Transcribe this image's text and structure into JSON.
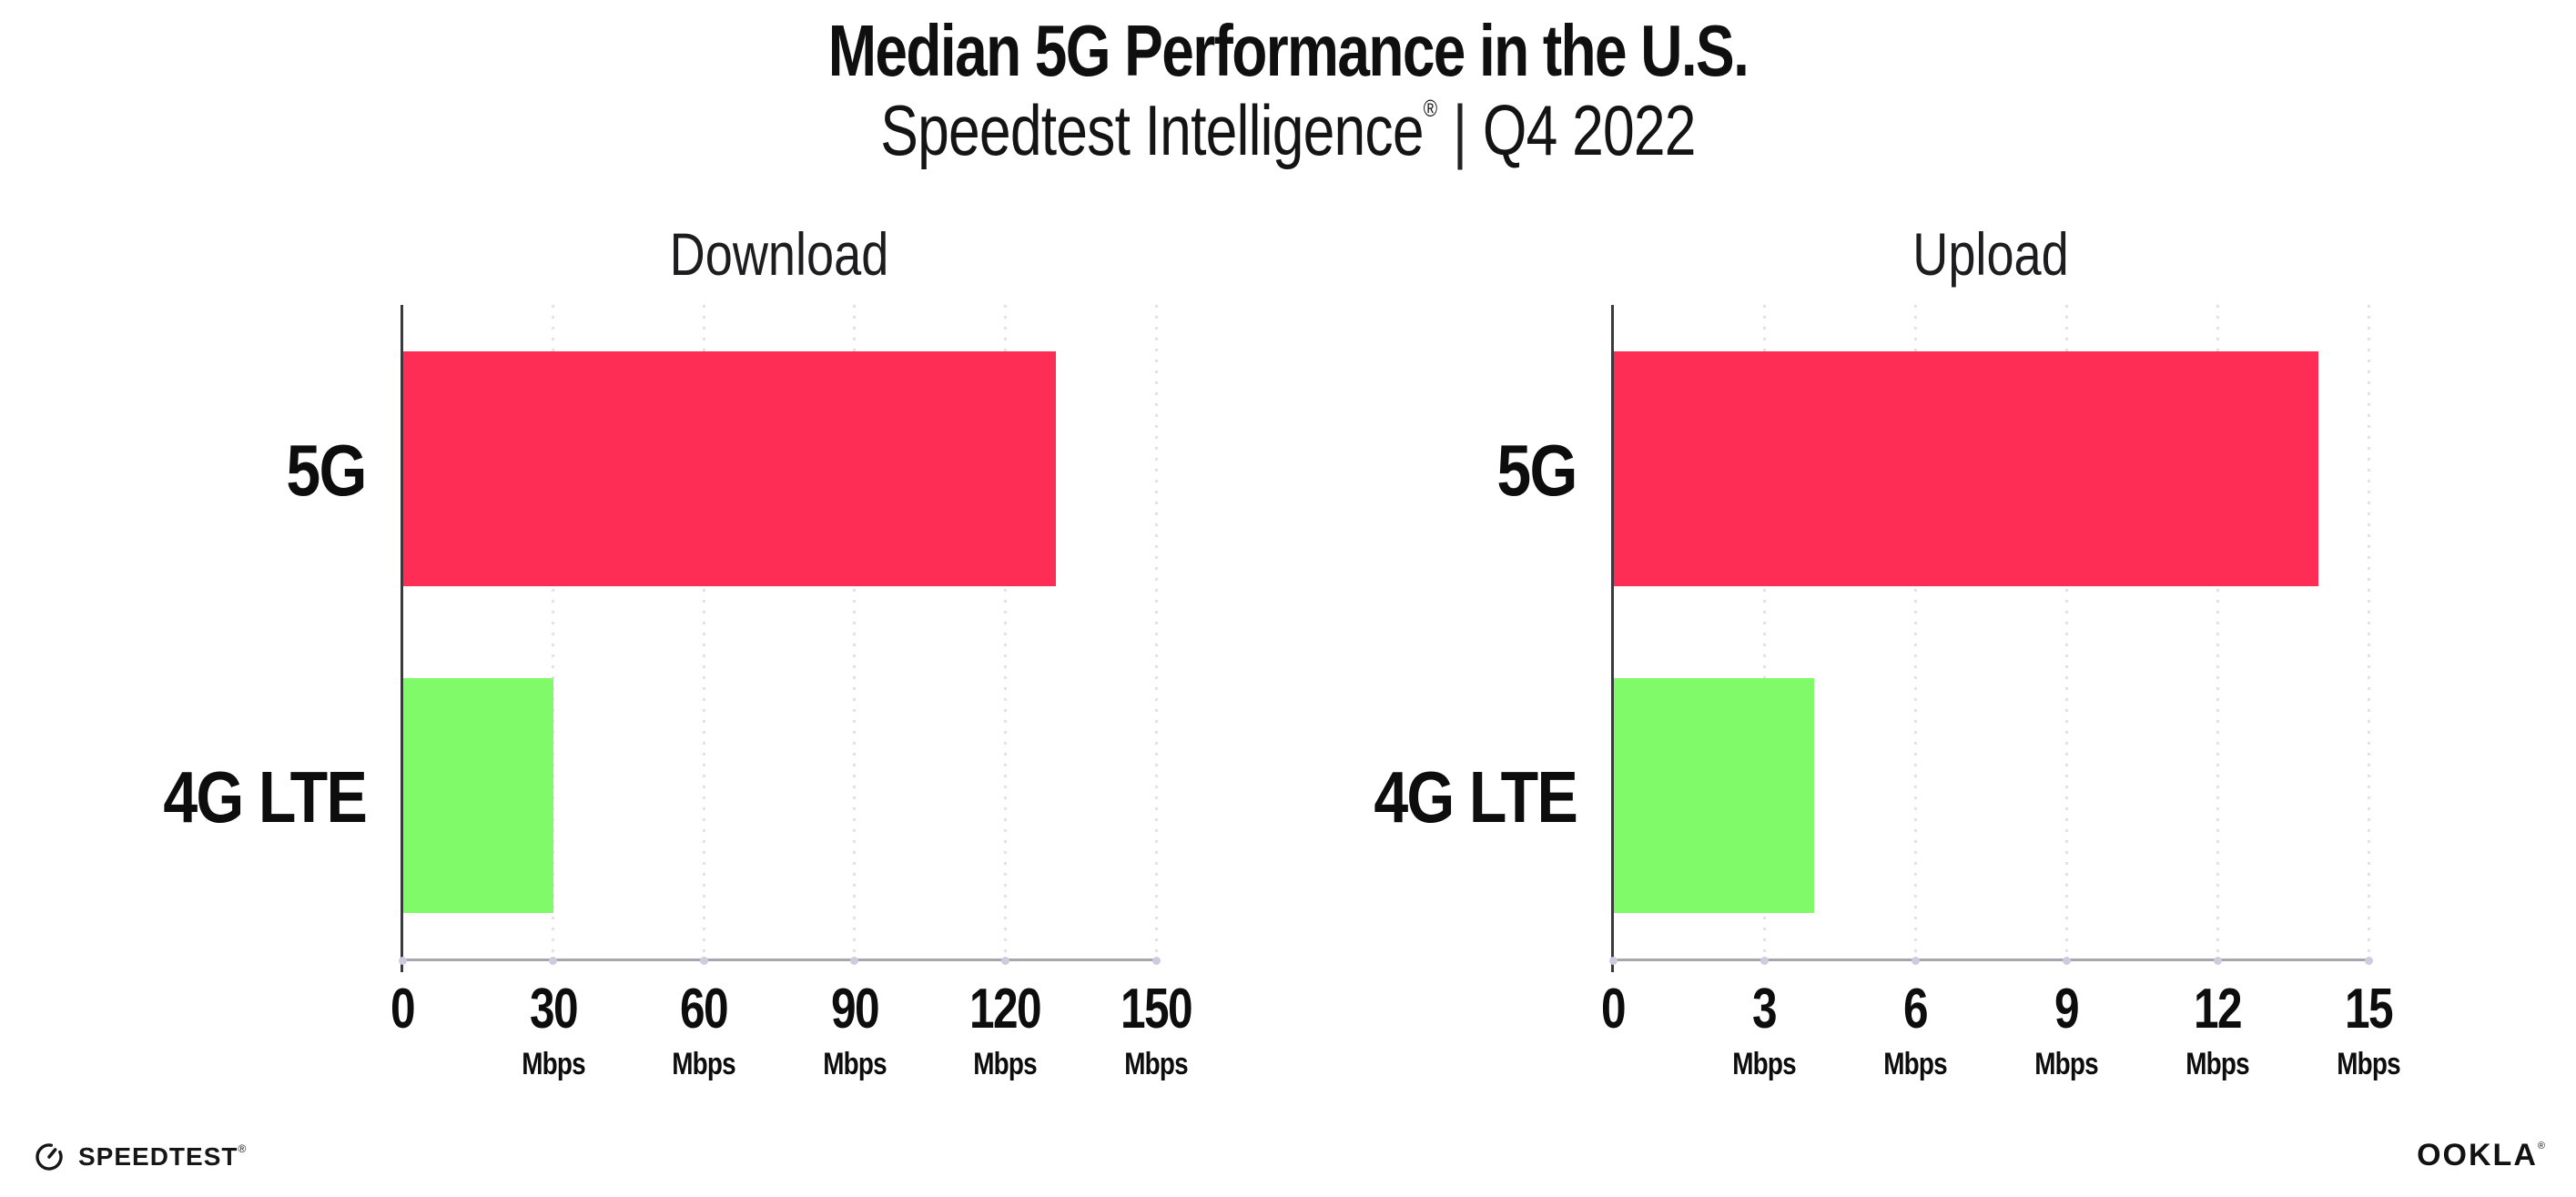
{
  "header": {
    "title": "Median 5G Performance in the U.S.",
    "subtitle_brand": "Speedtest Intelligence",
    "subtitle_reg": "®",
    "subtitle_separator": "|",
    "subtitle_period": "Q4 2022"
  },
  "footer": {
    "speedtest_text": "SPEEDTEST",
    "speedtest_reg": "®",
    "ookla_text": "OOKLA",
    "ookla_reg": "®"
  },
  "colors": {
    "bar_5g": "#FD2D55",
    "bar_4g_lte": "#80FA68",
    "gridline": "#E0E1EB",
    "y_axis": "#3A3A3E",
    "x_axis": "#A6A6AD",
    "tick_dot": "#CBCCDE",
    "text": "#0F0F10"
  },
  "chart_data": [
    {
      "type": "bar",
      "orientation": "horizontal",
      "title": "Download",
      "categories": [
        "5G",
        "4G LTE"
      ],
      "values": [
        130,
        30
      ],
      "unit": "Mbps",
      "xlim": [
        0,
        150
      ],
      "xticks": [
        0,
        30,
        60,
        90,
        120,
        150
      ],
      "bar_colors": [
        "#FD2D55",
        "#80FA68"
      ],
      "grid": "vertical-dotted",
      "legend": "none"
    },
    {
      "type": "bar",
      "orientation": "horizontal",
      "title": "Upload",
      "categories": [
        "5G",
        "4G LTE"
      ],
      "values": [
        14,
        4
      ],
      "unit": "Mbps",
      "xlim": [
        0,
        15
      ],
      "xticks": [
        0,
        3,
        6,
        9,
        12,
        15
      ],
      "bar_colors": [
        "#FD2D55",
        "#80FA68"
      ],
      "grid": "vertical-dotted",
      "legend": "none"
    }
  ]
}
